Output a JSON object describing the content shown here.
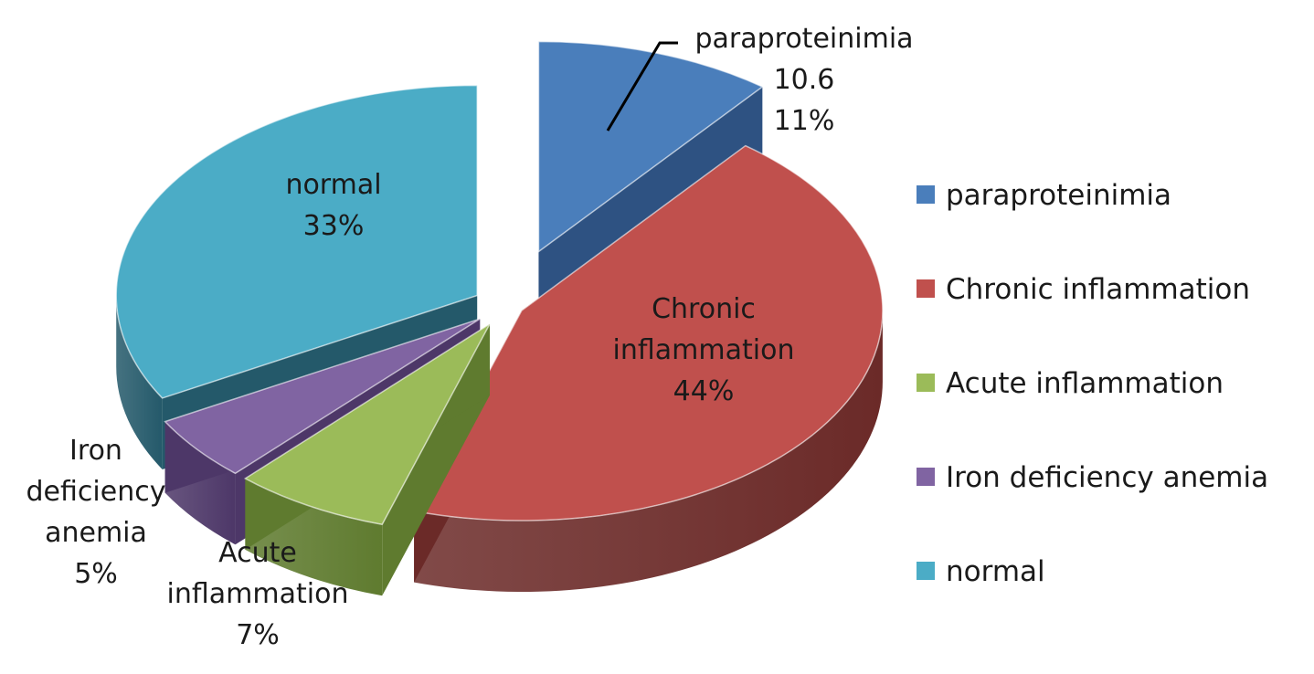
{
  "chart_data": {
    "type": "pie",
    "style": "3d-exploded",
    "title": "",
    "categories": [
      "paraproteinimia",
      "Chronic inflammation",
      "Acute inflammation",
      "Iron deficiency anemia",
      "normal"
    ],
    "values": [
      10.6,
      44,
      7,
      5,
      33
    ],
    "percent_labels": [
      "11%",
      "44%",
      "7%",
      "5%",
      "33%"
    ],
    "value_labels": [
      "10.6",
      "",
      "",
      "",
      ""
    ],
    "colors": [
      "#4a7ebb",
      "#c0504d",
      "#9bbb59",
      "#8064a2",
      "#4bacc6"
    ],
    "side_colors": [
      "#2e5282",
      "#6b2a28",
      "#5f7b2f",
      "#4d3768",
      "#24596a"
    ],
    "legend": {
      "position": "right",
      "entries": [
        "paraproteinimia",
        "Chronic inflammation",
        "Acute inflammation",
        "Iron deficiency anemia",
        "normal"
      ]
    },
    "slice_labels": [
      {
        "lines": [
          "paraproteinimia",
          "10.6",
          "11%"
        ]
      },
      {
        "lines": [
          "Chronic",
          "inflammation",
          "44%"
        ]
      },
      {
        "lines": [
          "Acute",
          "inflammation",
          "7%"
        ]
      },
      {
        "lines": [
          "Iron",
          "deficiency",
          "anemia",
          "5%"
        ]
      },
      {
        "lines": [
          "normal",
          "33%"
        ]
      }
    ]
  }
}
